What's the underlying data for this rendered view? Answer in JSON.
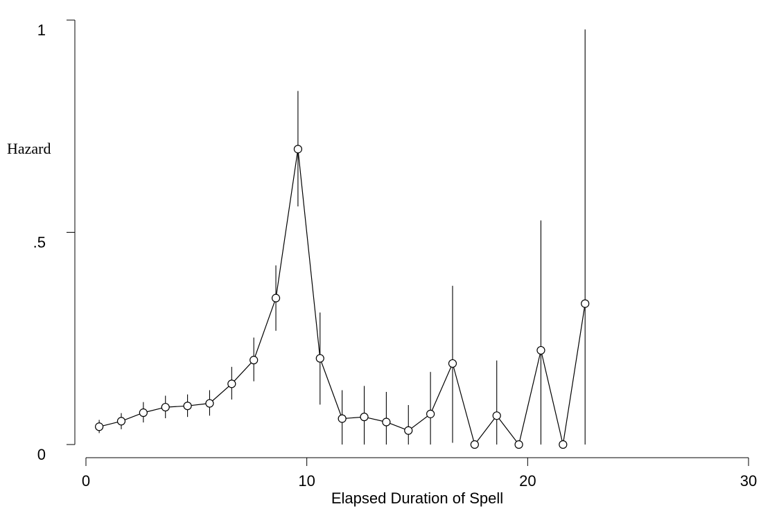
{
  "chart_data": {
    "type": "line",
    "title": "",
    "xlabel": "Elapsed Duration of Spell",
    "ylabel": "Hazard",
    "xlim": [
      0,
      30
    ],
    "ylim": [
      0,
      1
    ],
    "x_ticks": [
      0,
      10,
      20,
      30
    ],
    "x_tick_labels": [
      "0",
      "10",
      "20",
      "30"
    ],
    "y_ticks": [
      0,
      0.5,
      1
    ],
    "y_tick_labels": [
      "0",
      ".5",
      "1"
    ],
    "grid": false,
    "legend": "none",
    "line_color": "#000000",
    "marker": "hollow-circle",
    "series": [
      {
        "x": [
          0.6,
          1.6,
          2.6,
          3.6,
          4.6,
          5.6,
          6.6,
          7.6,
          8.6,
          9.6,
          10.6,
          11.6,
          12.6,
          13.6,
          14.6,
          15.6,
          16.6,
          17.6,
          18.6,
          19.6,
          20.6,
          21.6,
          22.6
        ],
        "y": [
          0.042,
          0.055,
          0.075,
          0.088,
          0.091,
          0.097,
          0.143,
          0.199,
          0.345,
          0.696,
          0.203,
          0.061,
          0.065,
          0.053,
          0.033,
          0.072,
          0.191,
          0.0,
          0.068,
          0.0,
          0.222,
          0.0,
          0.332
        ],
        "ci_low": [
          0.027,
          0.036,
          0.052,
          0.062,
          0.065,
          0.068,
          0.106,
          0.149,
          0.268,
          0.561,
          0.094,
          0.0,
          0.0,
          0.0,
          0.0,
          0.0,
          0.004,
          0.0,
          0.0,
          0.0,
          0.0,
          0.0,
          0.0
        ],
        "ci_high": [
          0.058,
          0.074,
          0.1,
          0.115,
          0.118,
          0.128,
          0.183,
          0.252,
          0.422,
          0.833,
          0.311,
          0.128,
          0.138,
          0.124,
          0.093,
          0.171,
          0.374,
          0.0,
          0.198,
          0.0,
          0.528,
          0.0,
          0.978
        ]
      }
    ]
  }
}
